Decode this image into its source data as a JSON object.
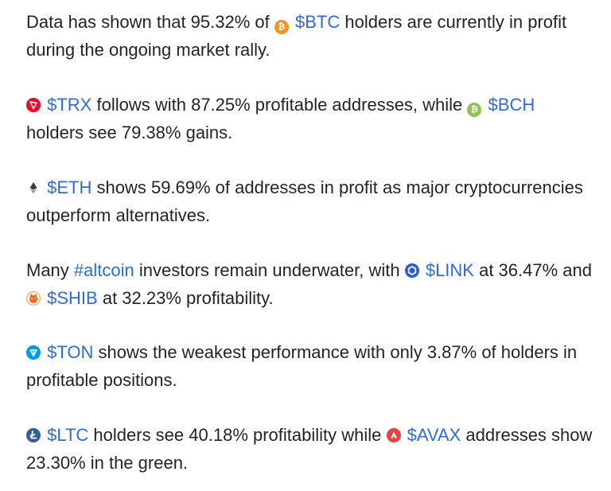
{
  "paragraphs": [
    {
      "parts": [
        "Data has shown that 95.32% of ",
        "$BTC",
        " holders are currently in profit during the ongoing market rally."
      ],
      "icons": [
        "bitcoin-icon"
      ]
    },
    {
      "parts": [
        "$TRX",
        " follows with 87.25% profitable addresses, while ",
        "$BCH",
        " holders see 79.38% gains."
      ],
      "icons": [
        "tron-icon",
        "bitcoin-cash-icon"
      ]
    },
    {
      "parts": [
        "$ETH",
        " shows 59.69% of addresses in profit as major cryptocurrencies outperform alternatives."
      ],
      "icons": [
        "ethereum-icon"
      ]
    },
    {
      "parts": [
        "Many ",
        "#altcoin",
        " investors remain underwater, with ",
        "$LINK",
        " at 36.47% and ",
        "$SHIB",
        " at 32.23% profitability."
      ],
      "icons": [
        "chainlink-icon",
        "shiba-inu-icon"
      ]
    },
    {
      "parts": [
        "$TON",
        " shows the weakest performance with only 3.87% of holders in profitable positions."
      ],
      "icons": [
        "toncoin-icon"
      ]
    },
    {
      "parts": [
        "$LTC",
        " holders see 40.18% profitability while ",
        "$AVAX",
        " addresses show 23.30% in the green."
      ],
      "icons": [
        "litecoin-icon",
        "avalanche-icon"
      ]
    }
  ],
  "colors": {
    "text": "#1f2328",
    "link": "#2f6bdc",
    "btc": "#f7931a",
    "trx": "#e3122c",
    "bch": "#8dc351",
    "eth": "#3c3c3d",
    "link_token": "#2a5ada",
    "shib": "#f2661f",
    "ton": "#0098ea",
    "ltc": "#345d9d",
    "avax": "#e84142"
  }
}
